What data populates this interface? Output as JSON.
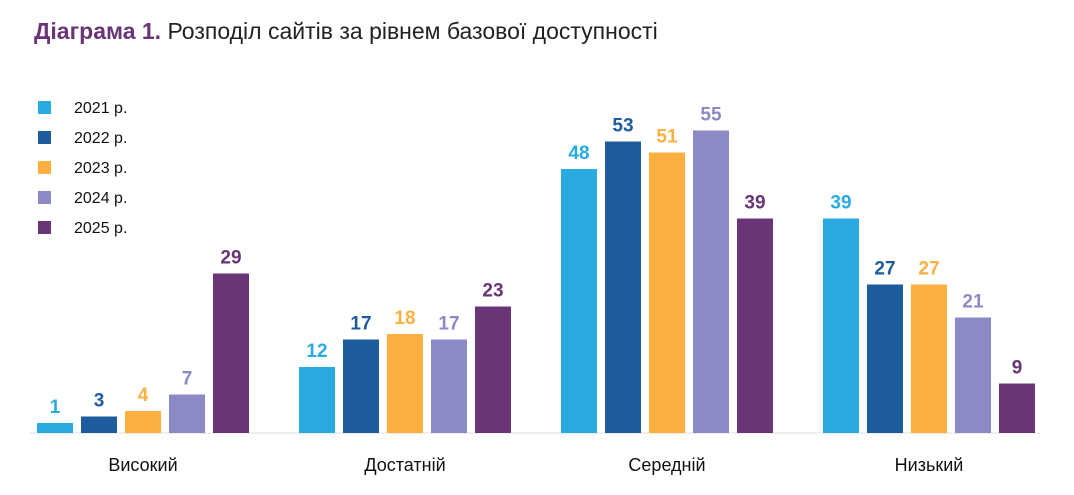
{
  "chart_data": {
    "type": "bar",
    "title_prefix": "Діаграма 1.",
    "title": "Розподіл сайтів за рівнем базової доступності",
    "categories": [
      "Високий",
      "Достатній",
      "Середній",
      "Низький"
    ],
    "series": [
      {
        "name": "2021 р.",
        "color": "#29abe2",
        "values": [
          1,
          12,
          48,
          39
        ]
      },
      {
        "name": "2022 р.",
        "color": "#1f5c9e",
        "values": [
          3,
          17,
          53,
          27
        ]
      },
      {
        "name": "2023 р.",
        "color": "#fbb040",
        "values": [
          4,
          18,
          51,
          27
        ]
      },
      {
        "name": "2024 р.",
        "color": "#8b8ac4",
        "values": [
          7,
          17,
          55,
          21
        ]
      },
      {
        "name": "2025 р.",
        "color": "#6a3577",
        "values": [
          29,
          23,
          39,
          9
        ]
      }
    ],
    "ylim": [
      0,
      56
    ],
    "grid": false,
    "legend_position": "top-left"
  }
}
